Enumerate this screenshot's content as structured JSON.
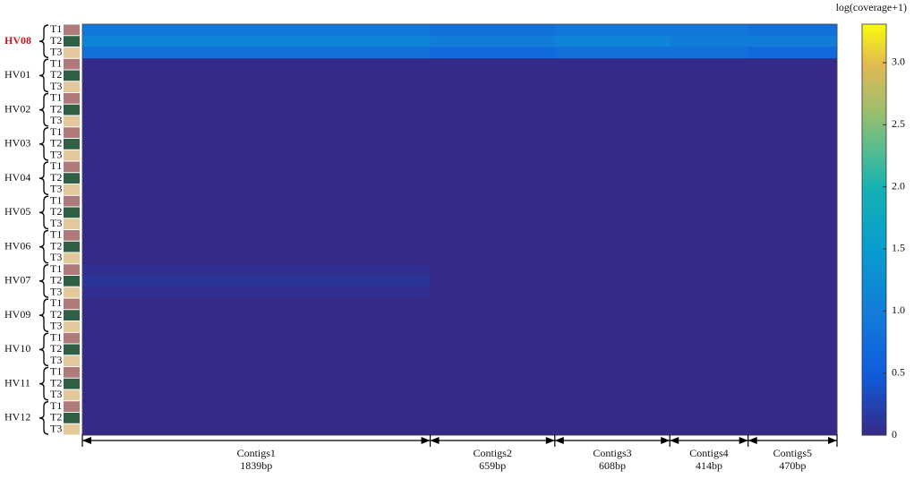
{
  "chart_data": {
    "type": "heatmap",
    "colorbar_title": "log(coverage+1)",
    "groups": [
      {
        "name": "HV08",
        "highlight": true
      },
      {
        "name": "HV01",
        "highlight": false
      },
      {
        "name": "HV02",
        "highlight": false
      },
      {
        "name": "HV03",
        "highlight": false
      },
      {
        "name": "HV04",
        "highlight": false
      },
      {
        "name": "HV05",
        "highlight": false
      },
      {
        "name": "HV06",
        "highlight": false
      },
      {
        "name": "HV07",
        "highlight": false
      },
      {
        "name": "HV09",
        "highlight": false
      },
      {
        "name": "HV10",
        "highlight": false
      },
      {
        "name": "HV11",
        "highlight": false
      },
      {
        "name": "HV12",
        "highlight": false
      }
    ],
    "highlight_color": "#c8191e",
    "samples": [
      "T1",
      "T2",
      "T3"
    ],
    "sample_colors": [
      "#b07a7a",
      "#2f5f45",
      "#e3c89c"
    ],
    "columns": [
      {
        "name": "Contigs1",
        "length": {
          "value": 1839,
          "label": "1839bp"
        }
      },
      {
        "name": "Contigs2",
        "length": {
          "value": 659,
          "label": "659bp"
        }
      },
      {
        "name": "Contigs3",
        "length": {
          "value": 608,
          "label": "608bp"
        }
      },
      {
        "name": "Contigs4",
        "length": {
          "value": 414,
          "label": "414bp"
        }
      },
      {
        "name": "Contigs5",
        "length": {
          "value": 470,
          "label": "470bp"
        }
      }
    ],
    "values": [
      [
        0.9,
        0.8,
        0.9,
        0.9,
        0.8
      ],
      [
        1.1,
        1.0,
        1.1,
        1.0,
        1.0
      ],
      [
        0.8,
        0.7,
        0.8,
        0.8,
        0.7
      ],
      [
        0,
        0,
        0,
        0,
        0
      ],
      [
        0,
        0,
        0,
        0,
        0
      ],
      [
        0,
        0,
        0,
        0,
        0
      ],
      [
        0,
        0,
        0,
        0,
        0
      ],
      [
        0,
        0,
        0,
        0,
        0
      ],
      [
        0,
        0,
        0,
        0,
        0
      ],
      [
        0,
        0,
        0,
        0,
        0
      ],
      [
        0,
        0,
        0,
        0,
        0
      ],
      [
        0,
        0,
        0,
        0,
        0
      ],
      [
        0,
        0,
        0,
        0,
        0
      ],
      [
        0,
        0,
        0,
        0,
        0
      ],
      [
        0,
        0,
        0,
        0,
        0
      ],
      [
        0,
        0,
        0,
        0,
        0
      ],
      [
        0,
        0,
        0,
        0,
        0
      ],
      [
        0,
        0,
        0,
        0,
        0
      ],
      [
        0,
        0,
        0,
        0,
        0
      ],
      [
        0,
        0,
        0,
        0,
        0
      ],
      [
        0,
        0,
        0,
        0,
        0
      ],
      [
        0.05,
        0,
        0,
        0,
        0
      ],
      [
        0.1,
        0,
        0,
        0,
        0
      ],
      [
        0.05,
        0,
        0,
        0,
        0
      ],
      [
        0,
        0,
        0,
        0,
        0
      ],
      [
        0,
        0,
        0,
        0,
        0
      ],
      [
        0,
        0,
        0,
        0,
        0
      ],
      [
        0,
        0,
        0,
        0,
        0
      ],
      [
        0,
        0,
        0,
        0,
        0
      ],
      [
        0,
        0,
        0,
        0,
        0
      ],
      [
        0,
        0,
        0,
        0,
        0
      ],
      [
        0,
        0,
        0,
        0,
        0
      ],
      [
        0,
        0,
        0,
        0,
        0
      ],
      [
        0,
        0,
        0,
        0,
        0
      ],
      [
        0,
        0,
        0,
        0,
        0
      ],
      [
        0,
        0,
        0,
        0,
        0
      ]
    ],
    "zlim": [
      0,
      3.31
    ],
    "zticks": [
      0,
      0.5,
      {
        "value": 1,
        "label": "1.0"
      },
      1.5,
      {
        "value": 2,
        "label": "2.0"
      },
      2.5,
      {
        "value": 3,
        "label": "3.0"
      }
    ]
  }
}
